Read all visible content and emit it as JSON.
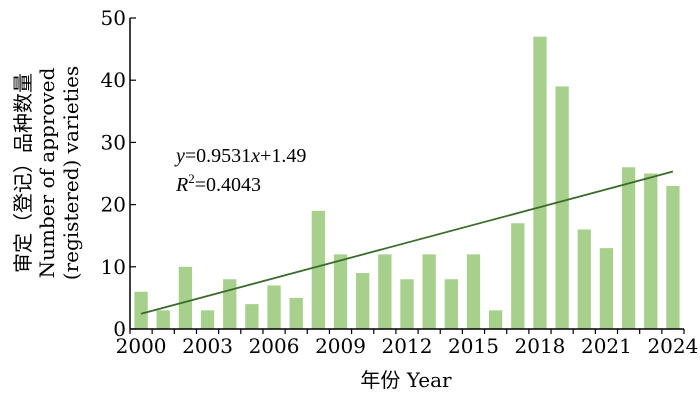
{
  "chart_data": {
    "type": "bar",
    "title": "",
    "xlabel": "年份 Year",
    "ylabel_lines": [
      "审定（登记）品种数量",
      "Number of approved",
      "(registered) varieties"
    ],
    "x": [
      2000,
      2001,
      2002,
      2003,
      2004,
      2005,
      2006,
      2007,
      2008,
      2009,
      2010,
      2011,
      2012,
      2013,
      2014,
      2015,
      2016,
      2017,
      2018,
      2019,
      2020,
      2021,
      2022,
      2023,
      2024
    ],
    "values": [
      6,
      3,
      10,
      3,
      8,
      4,
      7,
      5,
      19,
      12,
      9,
      12,
      8,
      12,
      8,
      12,
      3,
      17,
      47,
      39,
      16,
      13,
      26,
      25,
      23
    ],
    "x_tick_labels": [
      "2000",
      "2003",
      "2006",
      "2009",
      "2012",
      "2015",
      "2018",
      "2021",
      "2024"
    ],
    "y_tick_labels": [
      "0",
      "10",
      "20",
      "30",
      "40",
      "50"
    ],
    "ylim": [
      0,
      50
    ],
    "grid": false,
    "bar_color": "#a8d08d",
    "trendline": {
      "slope": 0.9531,
      "intercept": 1.49,
      "color": "#3a6b2a",
      "equation_parts": {
        "y": "y",
        "eq1": "=0.9531",
        "x": "x",
        "eq2": "+1.49",
        "r": "R",
        "sup": "2",
        "eq3": "=0.4043"
      }
    }
  }
}
